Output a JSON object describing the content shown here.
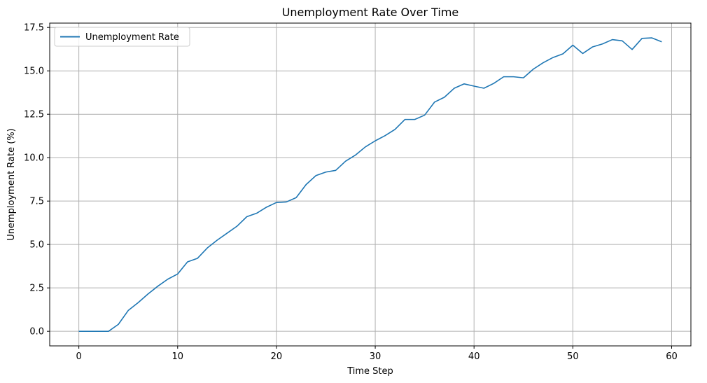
{
  "chart_data": {
    "type": "line",
    "title": "Unemployment Rate Over Time",
    "xlabel": "Time Step",
    "ylabel": "Unemployment Rate (%)",
    "xlim": [
      -2.95,
      61.95
    ],
    "ylim": [
      -0.84,
      17.75
    ],
    "xticks": [
      0,
      10,
      20,
      30,
      40,
      50,
      60
    ],
    "yticks": [
      0.0,
      2.5,
      5.0,
      7.5,
      10.0,
      12.5,
      15.0,
      17.5
    ],
    "xtick_labels": [
      "0",
      "10",
      "20",
      "30",
      "40",
      "50",
      "60"
    ],
    "ytick_labels": [
      "0.0",
      "2.5",
      "5.0",
      "7.5",
      "10.0",
      "12.5",
      "15.0",
      "17.5"
    ],
    "grid": true,
    "legend_position": "top-left",
    "series": [
      {
        "name": "Unemployment Rate",
        "color": "#1f77b4",
        "x": [
          0,
          1,
          2,
          3,
          4,
          5,
          6,
          7,
          8,
          9,
          10,
          11,
          12,
          13,
          14,
          15,
          16,
          17,
          18,
          19,
          20,
          21,
          22,
          23,
          24,
          25,
          26,
          27,
          28,
          29,
          30,
          31,
          32,
          33,
          34,
          35,
          36,
          37,
          38,
          39,
          40,
          41,
          42,
          43,
          44,
          45,
          46,
          47,
          48,
          49,
          50,
          51,
          52,
          53,
          54,
          55,
          56,
          57,
          58,
          59
        ],
        "values": [
          0.0,
          0.0,
          0.0,
          0.0,
          0.4,
          1.2,
          1.65,
          2.15,
          2.6,
          3.0,
          3.3,
          4.0,
          4.2,
          4.8,
          5.25,
          5.65,
          6.05,
          6.6,
          6.8,
          7.15,
          7.42,
          7.45,
          7.7,
          8.45,
          8.97,
          9.17,
          9.27,
          9.8,
          10.15,
          10.62,
          10.97,
          11.27,
          11.63,
          12.2,
          12.2,
          12.45,
          13.2,
          13.48,
          14.0,
          14.25,
          14.12,
          14.0,
          14.28,
          14.66,
          14.66,
          14.6,
          15.1,
          15.47,
          15.77,
          15.98,
          16.48,
          16.0,
          16.38,
          16.55,
          16.8,
          16.73,
          16.23,
          16.87,
          16.9,
          16.67
        ]
      }
    ]
  }
}
